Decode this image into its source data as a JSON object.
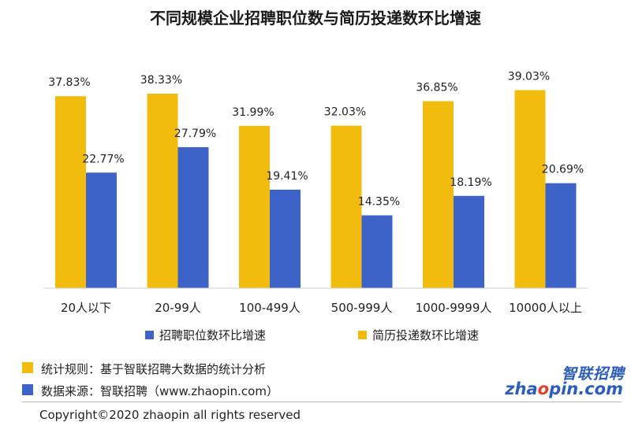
{
  "chart_data": {
    "type": "bar",
    "title": "不同规模企业招聘职位数与简历投递数环比增速",
    "categories": [
      "20人以下",
      "20-99人",
      "100-499人",
      "500-999人",
      "1000-9999人",
      "10000人以上"
    ],
    "series": [
      {
        "name": "简历投递数环比增速",
        "color": "#f2bc0e",
        "values": [
          37.83,
          38.33,
          31.99,
          32.03,
          36.85,
          39.03
        ],
        "labels": [
          "37.83%",
          "38.33%",
          "31.99%",
          "32.03%",
          "36.85%",
          "39.03%"
        ]
      },
      {
        "name": "招聘职位数环比增速",
        "color": "#3d63c9",
        "values": [
          22.77,
          27.79,
          19.41,
          14.35,
          18.19,
          20.69
        ],
        "labels": [
          "22.77%",
          "27.79%",
          "19.41%",
          "14.35%",
          "18.19%",
          "20.69%"
        ]
      }
    ],
    "legend": [
      "招聘职位数环比增速",
      "简历投递数环比增速"
    ],
    "legend_position": "bottom",
    "ylim": [
      0,
      45
    ],
    "grid": false,
    "xlabel": "",
    "ylabel": ""
  },
  "footer": {
    "note_rule": "统计规则：基于智联招聘大数据的统计分析",
    "note_source": "数据来源：智联招聘（www.zhaopin.com）",
    "copyright": "Copyright©2020 zhaopin all rights reserved",
    "logo_cn": "智联招聘",
    "logo_en_a": "zha",
    "logo_en_o": "o",
    "logo_en_b": "pin.com"
  }
}
